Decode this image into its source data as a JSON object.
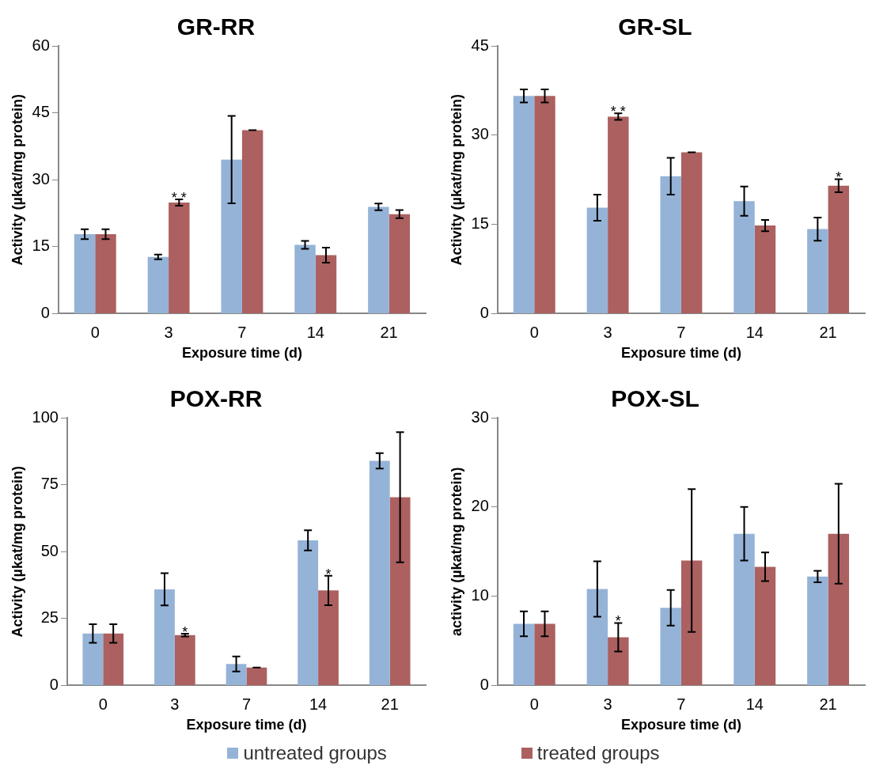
{
  "chart_data": [
    {
      "type": "bar",
      "title": "GR-RR",
      "xlabel": "Exposure time (d)",
      "ylabel": "Activity (µkat/mg protein)",
      "categories": [
        "0",
        "3",
        "7",
        "14",
        "21"
      ],
      "ylim": [
        0,
        60
      ],
      "yticks": [
        0,
        15,
        30,
        45,
        60
      ],
      "grid": false,
      "legend": "bottom",
      "series": [
        {
          "name": "untreated groups",
          "color": "#95b3d7",
          "values": [
            17.8,
            12.7,
            34.5,
            15.4,
            23.9
          ],
          "errors": [
            1.1,
            0.55,
            9.8,
            0.9,
            0.75
          ]
        },
        {
          "name": "treated groups",
          "color": "#ac6060",
          "values": [
            17.8,
            24.9,
            41.1,
            13.1,
            22.3
          ],
          "errors": [
            1.1,
            0.7,
            0,
            1.7,
            0.9
          ]
        }
      ],
      "annotations": [
        {
          "text": "* *",
          "x": "3",
          "y": 25.6
        }
      ]
    },
    {
      "type": "bar",
      "title": "GR-SL",
      "xlabel": "Exposure time (d)",
      "ylabel": "Activity (µkat/mg protein)",
      "categories": [
        "0",
        "3",
        "7",
        "14",
        "21"
      ],
      "ylim": [
        0,
        45
      ],
      "yticks": [
        0,
        15,
        30,
        45
      ],
      "grid": false,
      "series": [
        {
          "color": "#95b3d7",
          "values": [
            36.6,
            17.8,
            23.1,
            18.9,
            14.2
          ],
          "errors": [
            1.1,
            2.2,
            3.1,
            2.45,
            1.95
          ]
        },
        {
          "color": "#ac6060",
          "values": [
            36.6,
            33.1,
            27.1,
            14.8,
            21.5
          ],
          "errors": [
            1.1,
            0.55,
            0,
            0.95,
            1.1
          ]
        }
      ],
      "annotations": [
        {
          "text": "* *",
          "x": "3",
          "y": 33.65
        },
        {
          "text": "*",
          "x": "21",
          "y": 21.5
        }
      ]
    },
    {
      "type": "bar",
      "title": "POX-RR",
      "xlabel": "Exposure time (d)",
      "ylabel": "Activity (µkat/mg protein)",
      "categories": [
        "0",
        "3",
        "7",
        "14",
        "21"
      ],
      "ylim": [
        0,
        100
      ],
      "yticks": [
        0,
        25,
        50,
        75,
        100
      ],
      "grid": false,
      "series": [
        {
          "color": "#95b3d7",
          "values": [
            19.4,
            35.9,
            8.0,
            54.2,
            83.9
          ],
          "errors": [
            3.5,
            6,
            2.8,
            3.8,
            2.9
          ]
        },
        {
          "color": "#ac6060",
          "values": [
            19.4,
            18.8,
            6.7,
            35.5,
            70.3
          ],
          "errors": [
            3.5,
            0.5,
            0,
            5.5,
            24.3
          ]
        }
      ],
      "annotations": [
        {
          "text": "*",
          "x": "3",
          "y": 19.3
        },
        {
          "text": "*",
          "x": "14",
          "y": 41
        }
      ]
    },
    {
      "type": "bar",
      "title": "POX-SL",
      "xlabel": "Exposure time (d)",
      "ylabel": "activity (µkat/mg protein)",
      "categories": [
        "0",
        "3",
        "7",
        "14",
        "21"
      ],
      "ylim": [
        0,
        30
      ],
      "yticks": [
        0,
        10,
        20,
        30
      ],
      "grid": false,
      "series": [
        {
          "color": "#95b3d7",
          "values": [
            6.9,
            10.8,
            8.7,
            17.0,
            12.2
          ],
          "errors": [
            1.4,
            3.1,
            2.0,
            3.0,
            0.65
          ]
        },
        {
          "color": "#ac6060",
          "values": [
            6.9,
            5.4,
            14.0,
            13.3,
            17.0
          ],
          "errors": [
            1.4,
            1.6,
            8.0,
            1.6,
            5.6
          ]
        }
      ],
      "annotations": [
        {
          "text": "*",
          "x": "3",
          "y": 7.0
        }
      ]
    }
  ]
}
